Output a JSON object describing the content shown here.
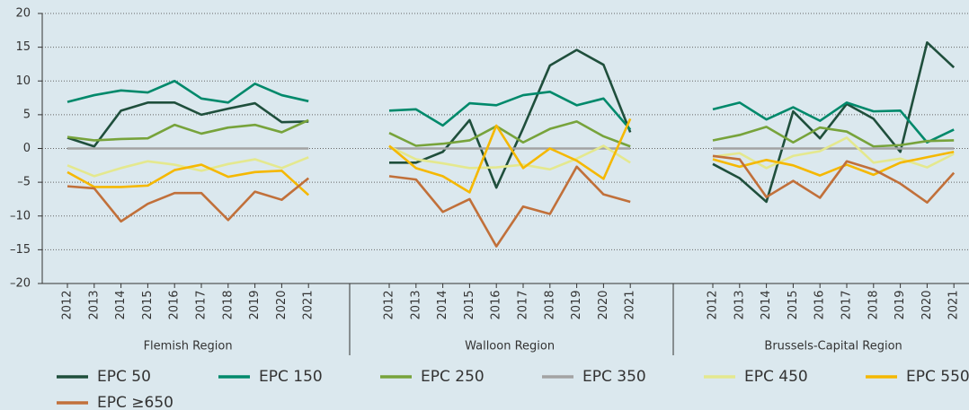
{
  "chart_data": {
    "type": "line",
    "ylim": [
      -20,
      20
    ],
    "yticks": [
      {
        "value": -20,
        "label": "–20"
      },
      {
        "value": -15,
        "label": "–15"
      },
      {
        "value": -10,
        "label": "–10"
      },
      {
        "value": -5,
        "label": "–5"
      },
      0,
      5,
      10,
      15,
      20
    ],
    "grid": true,
    "legend": "bottom",
    "groups": [
      {
        "label": "Flemish Region",
        "categories": [
          "2012",
          "2013",
          "2014",
          "2015",
          "2016",
          "2017",
          "2018",
          "2019",
          "2020",
          "2021"
        ]
      },
      {
        "label": "Walloon Region",
        "categories": [
          "2012",
          "2013",
          "2014",
          "2015",
          "2016",
          "2017",
          "2018",
          "2019",
          "2020",
          "2021"
        ]
      },
      {
        "label": "Brussels-Capital Region",
        "categories": [
          "2012",
          "2013",
          "2014",
          "2015",
          "2016",
          "2017",
          "2018",
          "2019",
          "2020",
          "2021"
        ]
      }
    ],
    "series": [
      {
        "name": "EPC 50",
        "color": "#1f4f3c",
        "values": [
          1.6,
          0.3,
          5.6,
          6.8,
          6.8,
          5.0,
          5.9,
          6.7,
          3.9,
          4.0,
          -2.1,
          -2.1,
          -0.5,
          4.2,
          -5.8,
          3.0,
          12.3,
          14.6,
          12.4,
          2.4,
          -2.3,
          -4.4,
          -7.9,
          5.5,
          1.5,
          6.6,
          4.4,
          -0.5,
          15.7,
          12.0
        ]
      },
      {
        "name": "EPC 150",
        "color": "#00896b",
        "values": [
          6.9,
          7.9,
          8.6,
          8.3,
          10.0,
          7.4,
          6.8,
          9.6,
          7.9,
          7.0,
          5.6,
          5.8,
          3.4,
          6.7,
          6.4,
          7.9,
          8.4,
          6.4,
          7.4,
          2.8,
          5.8,
          6.8,
          4.3,
          6.1,
          4.1,
          6.8,
          5.5,
          5.6,
          0.9,
          2.8
        ]
      },
      {
        "name": "EPC 250",
        "color": "#77a33b",
        "values": [
          1.7,
          1.2,
          1.4,
          1.5,
          3.5,
          2.2,
          3.1,
          3.5,
          2.4,
          4.2,
          2.3,
          0.4,
          0.7,
          1.2,
          3.3,
          0.9,
          2.9,
          4.0,
          1.8,
          0.3,
          1.2,
          2.0,
          3.2,
          0.9,
          3.1,
          2.5,
          0.3,
          0.5,
          1.1,
          1.2
        ]
      },
      {
        "name": "EPC 350",
        "color": "#a3a3a3",
        "values": [
          0,
          0,
          0,
          0,
          0,
          0,
          0,
          0,
          0,
          0,
          0,
          0,
          0,
          0,
          0,
          0,
          0,
          0,
          0,
          0,
          0,
          0,
          0,
          0,
          0,
          0,
          0,
          0,
          0,
          0
        ]
      },
      {
        "name": "EPC 450",
        "color": "#e4e88e",
        "values": [
          -2.5,
          -4.1,
          -2.9,
          -1.9,
          -2.4,
          -3.3,
          -2.3,
          -1.6,
          -2.9,
          -1.3,
          0.3,
          -1.6,
          -2.2,
          -2.9,
          -2.8,
          -2.4,
          -3.1,
          -1.5,
          0.4,
          -2.1,
          -1.2,
          -0.7,
          -2.9,
          -1.1,
          -0.4,
          1.6,
          -2.1,
          -1.5,
          -2.8,
          -0.8
        ]
      },
      {
        "name": "EPC 550",
        "color": "#f5b800",
        "values": [
          -3.5,
          -5.7,
          -5.7,
          -5.5,
          -3.2,
          -2.4,
          -4.2,
          -3.5,
          -3.3,
          -6.9,
          0.4,
          -2.9,
          -4.1,
          -6.5,
          3.4,
          -2.9,
          0,
          -1.8,
          -4.5,
          4.4,
          -1.6,
          -2.7,
          -1.7,
          -2.5,
          -4.0,
          -2.4,
          -3.9,
          -2.1,
          -1.3,
          -0.5
        ]
      },
      {
        "name": "EPC ≥650",
        "color": "#c1703a",
        "values": [
          -5.6,
          -5.9,
          -10.8,
          -8.2,
          -6.6,
          -6.6,
          -10.6,
          -6.4,
          -7.6,
          -4.4,
          -4.1,
          -4.6,
          -9.4,
          -7.5,
          -14.5,
          -8.6,
          -9.7,
          -2.7,
          -6.8,
          -7.9,
          -1.1,
          -1.6,
          -7.2,
          -4.8,
          -7.3,
          -1.9,
          -3.1,
          -5.2,
          -8.0,
          -3.6
        ]
      }
    ]
  }
}
